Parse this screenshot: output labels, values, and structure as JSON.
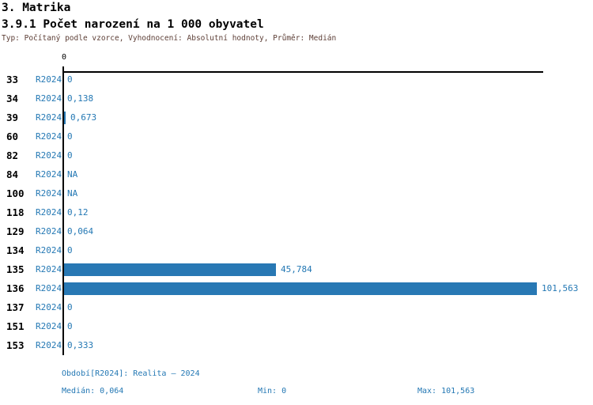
{
  "header": {
    "title": "3. Matrika",
    "subtitle": "3.9.1 Počet narození na 1 000 obyvatel",
    "meta": "Typ: Počítaný podle vzorce, Vyhodnocení: Absolutní hodnoty, Průměr: Medián"
  },
  "chart_data": {
    "type": "bar",
    "orientation": "horizontal",
    "title": "3.9.1 Počet narození na 1 000 obyvatel",
    "axis_zero_label": "0",
    "series_label": "R2024",
    "categories": [
      "33",
      "34",
      "39",
      "60",
      "82",
      "84",
      "100",
      "118",
      "129",
      "134",
      "135",
      "136",
      "137",
      "151",
      "153"
    ],
    "values": [
      0,
      0.138,
      0.673,
      0,
      0,
      null,
      null,
      0.12,
      0.064,
      0,
      45.784,
      101.563,
      0,
      0,
      0.333
    ],
    "value_labels": [
      "0",
      "0,138",
      "0,673",
      "0",
      "0",
      "NA",
      "NA",
      "0,12",
      "0,064",
      "0",
      "45,784",
      "101,563",
      "0",
      "0",
      "0,333"
    ],
    "xlim": [
      0,
      101.563
    ],
    "max_value": 101.563,
    "grid": false,
    "bar_color": "#2878b4",
    "text_color": "#2478b4",
    "axis_color": "#000000"
  },
  "footer": {
    "period": "Období[R2024]: Realita – 2024",
    "median_label": "Medián: 0,064",
    "min_label": "Min: 0",
    "max_label": "Max: 101,563"
  }
}
